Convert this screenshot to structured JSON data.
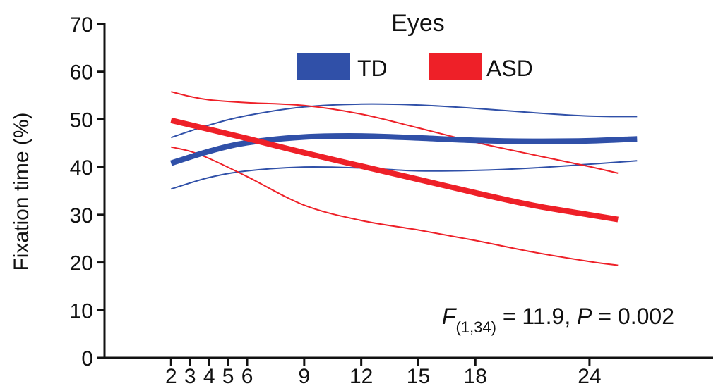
{
  "chart_data": {
    "type": "line",
    "title": "Eyes",
    "xlabel": "",
    "ylabel": "Fixation time (%)",
    "xlim": [
      -1.5,
      30.5
    ],
    "ylim": [
      0,
      70
    ],
    "x_ticks": [
      2,
      3,
      4,
      5,
      6,
      9,
      12,
      15,
      18,
      24
    ],
    "y_ticks": [
      0,
      10,
      20,
      30,
      40,
      50,
      60,
      70
    ],
    "grid": false,
    "legend": {
      "position": "top-center",
      "entries": [
        {
          "name": "TD",
          "color": "#3050a8"
        },
        {
          "name": "ASD",
          "color": "#ee2028"
        }
      ]
    },
    "annotation": {
      "f_letter": "F",
      "f_subscript": "(1,34)",
      "f_value": " = 11.9, ",
      "p_letter": "P",
      "p_value": " = 0.002"
    },
    "series": [
      {
        "name": "TD",
        "role": "mean",
        "color": "#3050a8",
        "x": [
          2,
          4,
          6,
          9,
          12,
          15,
          18,
          21,
          24,
          26.5
        ],
        "y": [
          40.8,
          43.3,
          45.1,
          46.3,
          46.5,
          46.1,
          45.6,
          45.4,
          45.5,
          45.9
        ]
      },
      {
        "name": "TD",
        "role": "upper",
        "color": "#3050a8",
        "x": [
          2,
          4,
          6,
          9,
          12,
          15,
          18,
          21,
          24,
          26.5
        ],
        "y": [
          46.2,
          48.8,
          50.8,
          52.6,
          53.2,
          53.0,
          52.3,
          51.4,
          50.7,
          50.6
        ]
      },
      {
        "name": "TD",
        "role": "lower",
        "color": "#3050a8",
        "x": [
          2,
          4,
          6,
          9,
          12,
          15,
          18,
          21,
          24,
          26.5
        ],
        "y": [
          35.4,
          37.8,
          39.2,
          40.0,
          39.8,
          39.2,
          39.3,
          39.8,
          40.6,
          41.3
        ]
      },
      {
        "name": "ASD",
        "role": "mean",
        "color": "#ee2028",
        "x": [
          2,
          4,
          6,
          9,
          12,
          15,
          18,
          21,
          24,
          25.5
        ],
        "y": [
          49.8,
          47.9,
          46.0,
          43.0,
          40.2,
          37.4,
          34.6,
          32.0,
          30.0,
          29.0
        ]
      },
      {
        "name": "ASD",
        "role": "upper",
        "color": "#ee2028",
        "x": [
          2,
          3,
          4,
          6,
          9,
          12,
          15,
          18,
          21,
          24,
          25.5
        ],
        "y": [
          55.8,
          54.8,
          54.1,
          53.5,
          52.9,
          51.1,
          48.2,
          45.2,
          42.6,
          40.1,
          38.7
        ]
      },
      {
        "name": "ASD",
        "role": "lower",
        "color": "#ee2028",
        "x": [
          2,
          3,
          4,
          6,
          9,
          12,
          15,
          18,
          21,
          24,
          25.5
        ],
        "y": [
          44.2,
          43.3,
          41.8,
          38.0,
          32.0,
          28.8,
          26.8,
          24.6,
          22.2,
          20.2,
          19.4
        ]
      }
    ]
  }
}
